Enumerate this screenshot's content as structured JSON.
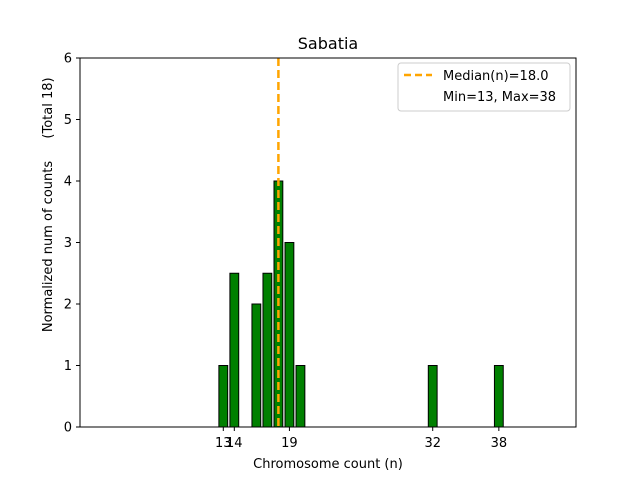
{
  "chart_data": {
    "type": "bar",
    "title": "Sabatia",
    "xlabel": "Chromosome count (n)",
    "ylabel": "Normalized num of counts",
    "ylabel_note": "(Total 18)",
    "xlim": [
      0,
      45
    ],
    "ylim": [
      0,
      6
    ],
    "yticks": [
      0,
      1,
      2,
      3,
      4,
      5,
      6
    ],
    "xticks": [
      13,
      14,
      19,
      32,
      38
    ],
    "bar_color": "#008000",
    "bars": [
      {
        "x": 13,
        "value": 1
      },
      {
        "x": 14,
        "value": 2.5
      },
      {
        "x": 16,
        "value": 2
      },
      {
        "x": 17,
        "value": 2.5
      },
      {
        "x": 18,
        "value": 4
      },
      {
        "x": 19,
        "value": 3
      },
      {
        "x": 20,
        "value": 1
      },
      {
        "x": 32,
        "value": 1
      },
      {
        "x": 38,
        "value": 1
      }
    ],
    "median": {
      "value": 18.0,
      "color": "#FFA500",
      "style": "dashed"
    },
    "legend": {
      "position": "top-right",
      "entries": [
        "Median(n)=18.0",
        "Min=13, Max=38"
      ]
    },
    "grid": false
  }
}
